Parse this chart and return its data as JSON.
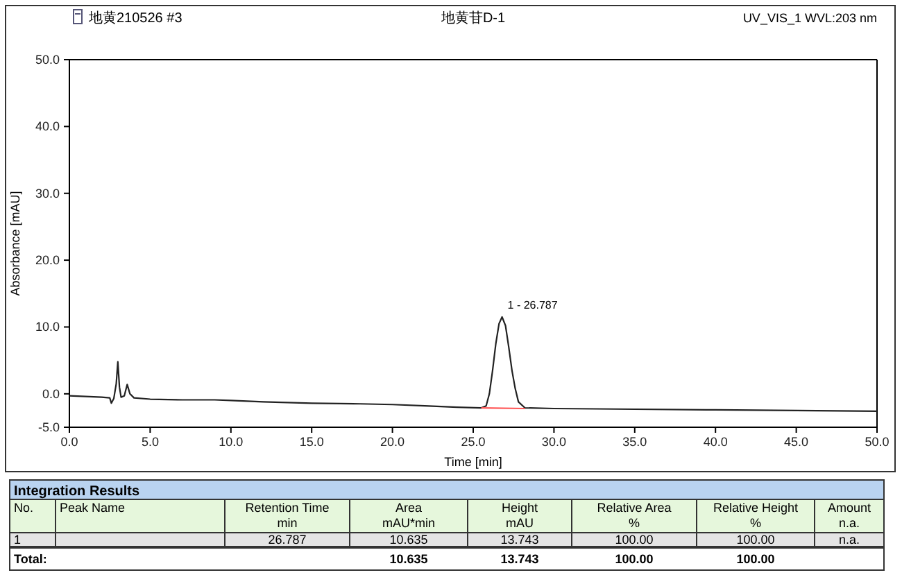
{
  "chart_data": [
    {
      "type": "line",
      "title": "地黄苷D-1",
      "subtitle": "地黄210526 #3",
      "xlabel": "Time [min]",
      "ylabel": "Absorbance [mAU]",
      "xlim": [
        0,
        50
      ],
      "ylim": [
        -5,
        50
      ],
      "xticks": [
        {
          "value": 0,
          "label": "0.0"
        },
        {
          "value": 5,
          "label": "5.0"
        },
        {
          "value": 10,
          "label": "10.0"
        },
        {
          "value": 15,
          "label": "15.0"
        },
        {
          "value": 20,
          "label": "20.0"
        },
        {
          "value": 25,
          "label": "25.0"
        },
        {
          "value": 30,
          "label": "30.0"
        },
        {
          "value": 35,
          "label": "35.0"
        },
        {
          "value": 40,
          "label": "40.0"
        },
        {
          "value": 45,
          "label": "45.0"
        },
        {
          "value": 50,
          "label": "50.0"
        }
      ],
      "yticks": [
        {
          "value": -5,
          "label": "-5.0"
        },
        {
          "value": 0,
          "label": "0.0"
        },
        {
          "value": 10,
          "label": "10.0"
        },
        {
          "value": 20,
          "label": "20.0"
        },
        {
          "value": 30,
          "label": "30.0"
        },
        {
          "value": 40,
          "label": "40.0"
        },
        {
          "value": 50,
          "label": "50.0"
        }
      ],
      "grid": false,
      "line_style": "solid",
      "marker": "none",
      "annotations": [
        "UV_VIS_1 WVL:203 nm",
        {
          "text": "1 - 26.787",
          "x": 26.787,
          "y": 11.5
        }
      ],
      "series": [
        {
          "color": "#222222",
          "x": [
            0,
            1,
            2,
            2.5,
            2.6,
            2.75,
            2.9,
            3.0,
            3.1,
            3.2,
            3.4,
            3.58,
            3.75,
            4,
            5,
            7,
            9,
            10,
            12,
            15,
            18,
            20,
            22,
            24,
            25.5,
            25.8,
            26.0,
            26.2,
            26.4,
            26.6,
            26.787,
            27.0,
            27.2,
            27.4,
            27.6,
            27.8,
            28.2,
            30,
            35,
            40,
            45,
            50
          ],
          "values": [
            -0.3,
            -0.4,
            -0.5,
            -0.6,
            -1.4,
            -0.7,
            1.5,
            4.8,
            1.0,
            -0.5,
            -0.3,
            1.4,
            0,
            -0.6,
            -0.8,
            -0.9,
            -0.9,
            -1.0,
            -1.2,
            -1.4,
            -1.5,
            -1.6,
            -1.8,
            -2.0,
            -2.1,
            -1.8,
            0,
            3.5,
            7.5,
            10.5,
            11.5,
            10.2,
            7,
            3.5,
            0.8,
            -1.2,
            -2.1,
            -2.2,
            -2.3,
            -2.4,
            -2.5,
            -2.6
          ]
        },
        {
          "color": "#ff5555",
          "x": [
            25.5,
            28.2
          ],
          "values": [
            -2.1,
            -2.2
          ]
        }
      ]
    },
    {
      "type": "other",
      "title": "Integration Results",
      "annotations": [
        "No.",
        "Peak Name",
        "Retention Time\nmin",
        "Area\nmAU*min",
        "Height\nmAU",
        "Relative Area\n%",
        "Relative Height\n%",
        "Amount\nn.a.",
        "1",
        "26.787",
        "10.635",
        "13.743",
        "100.00",
        "100.00",
        "n.a.",
        "Total:",
        "10.635",
        "13.743",
        "100.00",
        "100.00"
      ]
    }
  ]
}
